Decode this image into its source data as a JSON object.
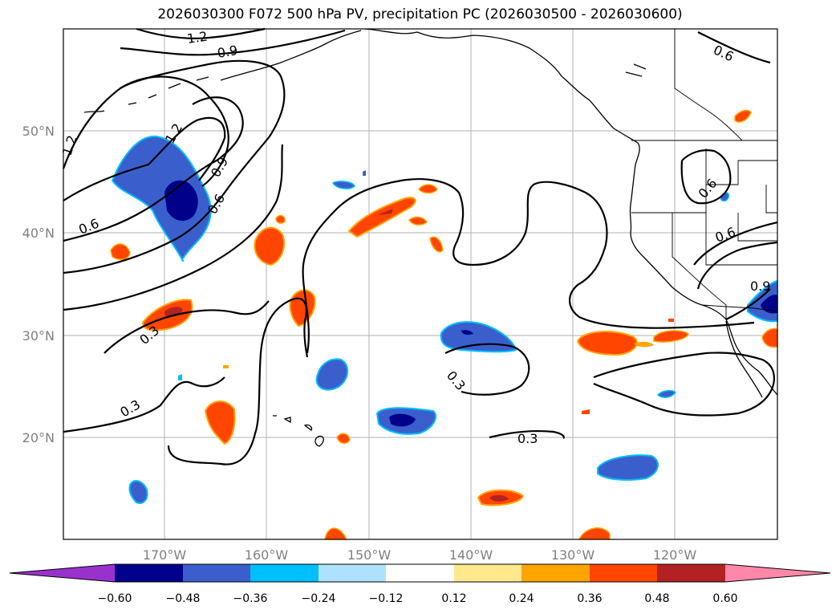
{
  "title": "2026030300 F072 500 hPa PV, precipitation PC (2026030500 - 2026030600)",
  "axes": {
    "lat_labels": [
      "50°N",
      "40°N",
      "30°N",
      "20°N"
    ],
    "lon_labels": [
      "170°W",
      "160°W",
      "150°W",
      "140°W",
      "130°W",
      "120°W"
    ]
  },
  "contour_labels": [
    "1.2",
    "0.9",
    "1.2",
    "0.9",
    "0.6",
    "0.6",
    "1.2",
    "0.3",
    "0.3",
    "0.3",
    "0.3",
    "0.6",
    "0.6",
    "0.9",
    "0.6"
  ],
  "colorbar": {
    "ticks": [
      "−0.60",
      "−0.48",
      "−0.36",
      "−0.24",
      "−0.12",
      "0.12",
      "0.24",
      "0.36",
      "0.48",
      "0.60"
    ],
    "colors": {
      "below": "#9932CC",
      "b1": "#00008B",
      "b2": "#3A5FCD",
      "b3": "#00BFFF",
      "b4": "#ADE2FA",
      "b5": "#FFFFFF",
      "b6": "#FFE98C",
      "b7": "#FFA500",
      "b8": "#FF4500",
      "b9": "#B22222",
      "above": "#FF88AA"
    }
  }
}
